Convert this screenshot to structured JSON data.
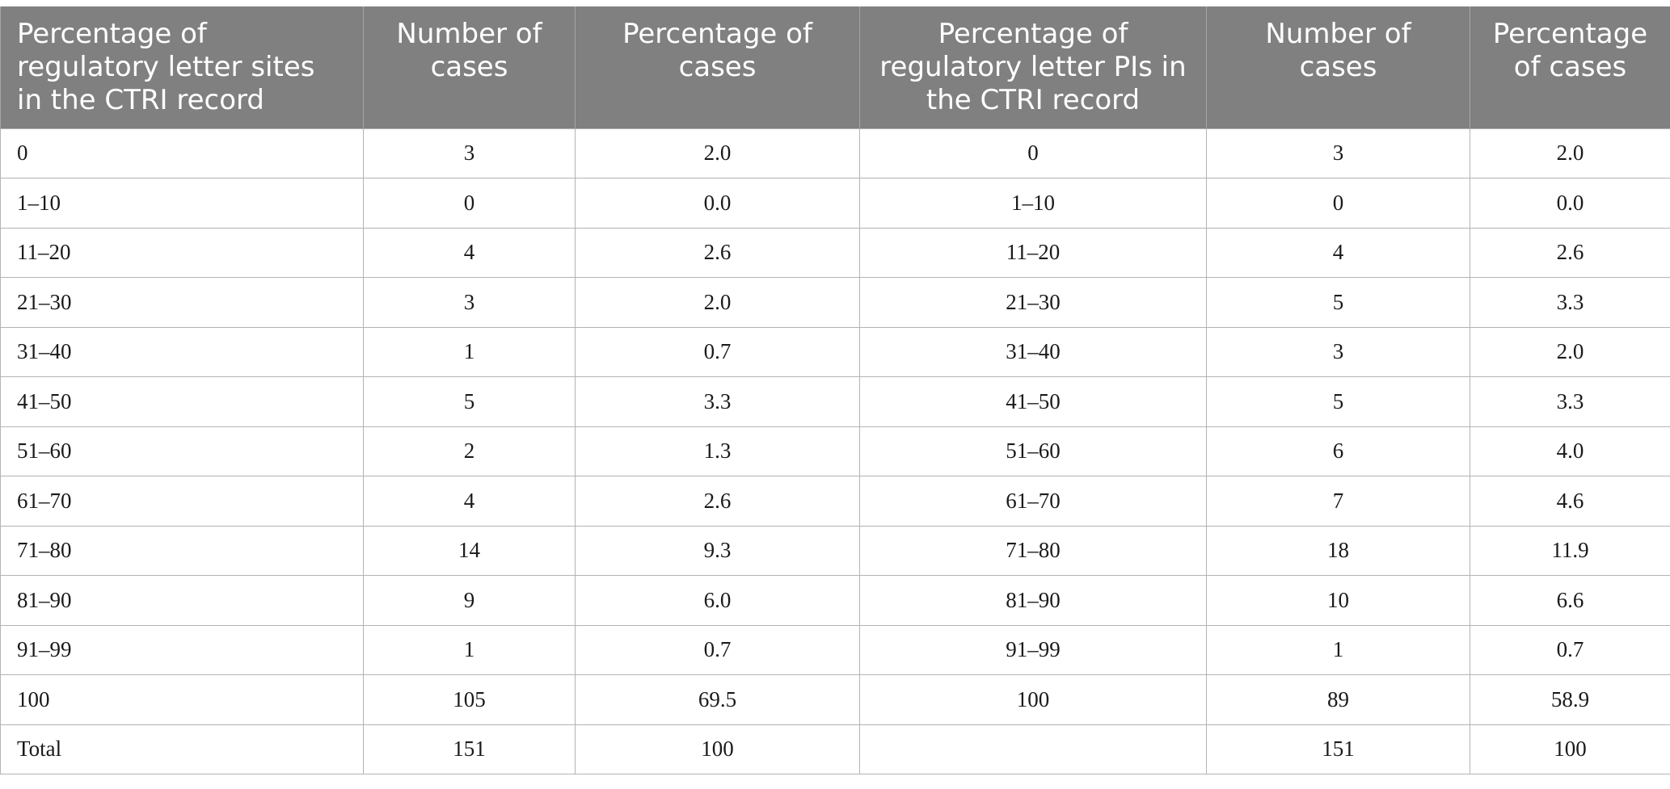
{
  "table": {
    "headers": [
      "Percentage of regulatory letter sites in the CTRI record",
      "Number of cases",
      "Percentage of cases",
      "Percentage of regulatory letter PIs in the CTRI record",
      "Number of cases",
      "Percentage of cases"
    ],
    "rows": [
      [
        "0",
        "3",
        "2.0",
        "0",
        "3",
        "2.0"
      ],
      [
        "1–10",
        "0",
        "0.0",
        "1–10",
        "0",
        "0.0"
      ],
      [
        "11–20",
        "4",
        "2.6",
        "11–20",
        "4",
        "2.6"
      ],
      [
        "21–30",
        "3",
        "2.0",
        "21–30",
        "5",
        "3.3"
      ],
      [
        "31–40",
        "1",
        "0.7",
        "31–40",
        "3",
        "2.0"
      ],
      [
        "41–50",
        "5",
        "3.3",
        "41–50",
        "5",
        "3.3"
      ],
      [
        "51–60",
        "2",
        "1.3",
        "51–60",
        "6",
        "4.0"
      ],
      [
        "61–70",
        "4",
        "2.6",
        "61–70",
        "7",
        "4.6"
      ],
      [
        "71–80",
        "14",
        "9.3",
        "71–80",
        "18",
        "11.9"
      ],
      [
        "81–90",
        "9",
        "6.0",
        "81–90",
        "10",
        "6.6"
      ],
      [
        "91–99",
        "1",
        "0.7",
        "91–99",
        "1",
        "0.7"
      ],
      [
        "100",
        "105",
        "69.5",
        "100",
        "89",
        "58.9"
      ],
      [
        "Total",
        "151",
        "100",
        "",
        "151",
        "100"
      ]
    ]
  },
  "colors": {
    "header_background": "#808080",
    "header_text": "#ffffff",
    "grid_line": "#b3b3b3"
  }
}
